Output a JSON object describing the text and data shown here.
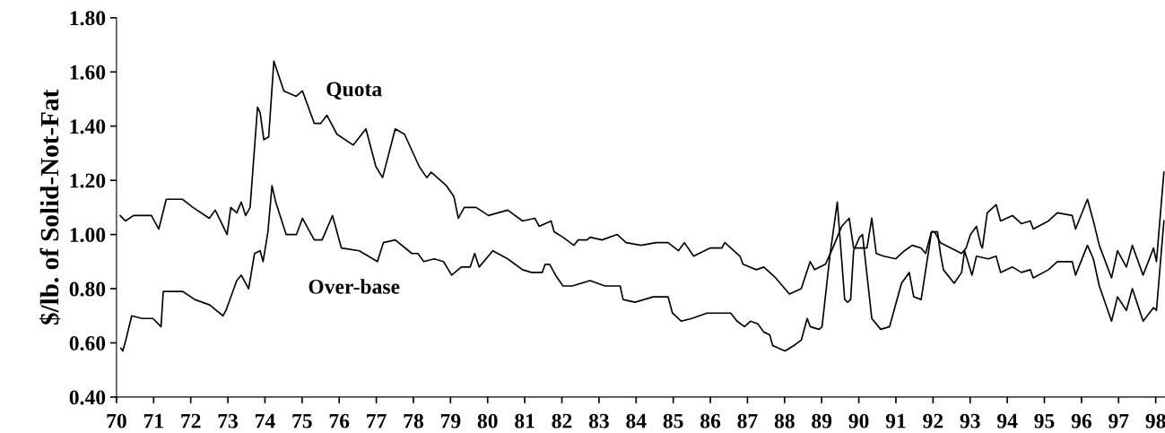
{
  "chart_data": {
    "type": "line",
    "ylabel": "$/lb. of Solid-Not-Fat",
    "xlim": [
      70,
      98.25
    ],
    "ylim": [
      0.4,
      1.8
    ],
    "xticks": [
      {
        "value": 70,
        "label": "70"
      },
      {
        "value": 71,
        "label": "71"
      },
      {
        "value": 72,
        "label": "72"
      },
      {
        "value": 73,
        "label": "73"
      },
      {
        "value": 74,
        "label": "74"
      },
      {
        "value": 75,
        "label": "75"
      },
      {
        "value": 76,
        "label": "76"
      },
      {
        "value": 77,
        "label": "77"
      },
      {
        "value": 78,
        "label": "78"
      },
      {
        "value": 79,
        "label": "79"
      },
      {
        "value": 80,
        "label": "80"
      },
      {
        "value": 81,
        "label": "81"
      },
      {
        "value": 82,
        "label": "82"
      },
      {
        "value": 83,
        "label": "83"
      },
      {
        "value": 84,
        "label": "84"
      },
      {
        "value": 85,
        "label": "85"
      },
      {
        "value": 86,
        "label": "86"
      },
      {
        "value": 87,
        "label": "87"
      },
      {
        "value": 88,
        "label": "88"
      },
      {
        "value": 89,
        "label": "89"
      },
      {
        "value": 90,
        "label": "90"
      },
      {
        "value": 91,
        "label": "91"
      },
      {
        "value": 92,
        "label": "92"
      },
      {
        "value": 93,
        "label": "93"
      },
      {
        "value": 94,
        "label": "94"
      },
      {
        "value": 95,
        "label": "95"
      },
      {
        "value": 96,
        "label": "96"
      },
      {
        "value": 97,
        "label": "97"
      },
      {
        "value": 98,
        "label": "98"
      }
    ],
    "yticks": [
      {
        "value": 0.4,
        "label": "0.40"
      },
      {
        "value": 0.6,
        "label": "0.60"
      },
      {
        "value": 0.8,
        "label": "0.80"
      },
      {
        "value": 1.0,
        "label": "1.00"
      },
      {
        "value": 1.2,
        "label": "1.20"
      },
      {
        "value": 1.4,
        "label": "1.40"
      },
      {
        "value": 1.6,
        "label": "1.60"
      },
      {
        "value": 1.8,
        "label": "1.80"
      }
    ],
    "grid": false,
    "marker": "none",
    "line_style": "solid",
    "series": [
      {
        "name": "Quota",
        "color": "#000000",
        "x": [
          70.1,
          70.24,
          70.46,
          70.94,
          71.14,
          71.34,
          71.78,
          72.06,
          72.5,
          72.66,
          72.98,
          73.08,
          73.24,
          73.36,
          73.48,
          73.6,
          73.8,
          73.87,
          73.97,
          74.1,
          74.24,
          74.51,
          74.84,
          75.01,
          75.33,
          75.5,
          75.67,
          75.94,
          76.38,
          76.72,
          76.99,
          77.17,
          77.51,
          77.76,
          78.16,
          78.36,
          78.48,
          78.89,
          79.09,
          79.21,
          79.37,
          79.69,
          80.02,
          80.54,
          80.94,
          81.27,
          81.39,
          81.71,
          81.79,
          82.03,
          82.32,
          82.44,
          82.68,
          82.76,
          83.08,
          83.49,
          83.73,
          84.13,
          84.54,
          84.86,
          85.14,
          85.3,
          85.55,
          85.99,
          86.31,
          86.39,
          86.8,
          86.88,
          87.24,
          87.44,
          87.76,
          88.13,
          88.45,
          88.69,
          88.81,
          89.1,
          89.3,
          89.54,
          89.74,
          89.86,
          90.1,
          90.22,
          90.35,
          90.47,
          90.67,
          90.99,
          91.23,
          91.44,
          91.68,
          91.8,
          91.96,
          92.04,
          92.2,
          92.77,
          92.89,
          93.01,
          93.17,
          93.29,
          93.33,
          93.46,
          93.7,
          93.82,
          94.14,
          94.38,
          94.62,
          94.7,
          95.11,
          95.35,
          95.75,
          95.84,
          96.16,
          96.32,
          96.48,
          96.81,
          96.97,
          97.21,
          97.37,
          97.66,
          97.94,
          98.02,
          98.22
        ],
        "values": [
          1.07,
          1.05,
          1.07,
          1.07,
          1.02,
          1.13,
          1.13,
          1.1,
          1.06,
          1.09,
          1.0,
          1.1,
          1.08,
          1.12,
          1.07,
          1.1,
          1.47,
          1.45,
          1.35,
          1.36,
          1.64,
          1.53,
          1.51,
          1.53,
          1.41,
          1.41,
          1.44,
          1.37,
          1.33,
          1.39,
          1.25,
          1.21,
          1.39,
          1.37,
          1.25,
          1.21,
          1.23,
          1.18,
          1.14,
          1.06,
          1.1,
          1.1,
          1.07,
          1.09,
          1.05,
          1.06,
          1.03,
          1.05,
          1.01,
          0.99,
          0.96,
          0.98,
          0.98,
          0.99,
          0.98,
          1.0,
          0.97,
          0.96,
          0.97,
          0.97,
          0.94,
          0.97,
          0.92,
          0.95,
          0.95,
          0.97,
          0.92,
          0.89,
          0.87,
          0.88,
          0.84,
          0.78,
          0.8,
          0.9,
          0.87,
          0.89,
          0.95,
          1.03,
          1.06,
          0.95,
          0.95,
          0.95,
          1.06,
          0.93,
          0.92,
          0.91,
          0.94,
          0.96,
          0.95,
          0.93,
          1.01,
          1.01,
          0.97,
          0.93,
          0.95,
          1.0,
          1.03,
          0.96,
          0.95,
          1.08,
          1.11,
          1.05,
          1.07,
          1.04,
          1.05,
          1.02,
          1.05,
          1.08,
          1.07,
          1.02,
          1.13,
          1.05,
          0.96,
          0.84,
          0.94,
          0.88,
          0.96,
          0.85,
          0.95,
          0.9,
          1.23
        ]
      },
      {
        "name": "Over-base",
        "color": "#000000",
        "x": [
          70.12,
          70.17,
          70.25,
          70.41,
          70.69,
          70.98,
          71.2,
          71.26,
          71.78,
          72.11,
          72.51,
          72.87,
          72.95,
          73.24,
          73.36,
          73.56,
          73.72,
          73.87,
          73.95,
          74.08,
          74.19,
          74.29,
          74.57,
          74.85,
          75.01,
          75.17,
          75.33,
          75.54,
          75.82,
          76.06,
          76.54,
          77.03,
          77.19,
          77.51,
          77.96,
          78.12,
          78.28,
          78.56,
          78.81,
          79.03,
          79.29,
          79.53,
          79.65,
          79.77,
          80.14,
          80.54,
          80.94,
          81.18,
          81.47,
          81.55,
          81.67,
          81.83,
          82.03,
          82.28,
          82.76,
          83.16,
          83.57,
          83.65,
          83.97,
          84.46,
          84.86,
          84.98,
          85.22,
          85.5,
          85.91,
          86.31,
          86.55,
          86.72,
          86.92,
          87.08,
          87.28,
          87.44,
          87.6,
          87.68,
          88.01,
          88.25,
          88.45,
          88.61,
          88.69,
          88.93,
          89.01,
          89.22,
          89.42,
          89.62,
          89.7,
          89.78,
          89.86,
          90.02,
          90.1,
          90.35,
          90.59,
          90.83,
          91.15,
          91.36,
          91.48,
          91.68,
          91.96,
          92.12,
          92.2,
          92.28,
          92.57,
          92.77,
          92.85,
          93.05,
          93.17,
          93.49,
          93.7,
          93.82,
          94.14,
          94.38,
          94.62,
          94.7,
          95.11,
          95.35,
          95.75,
          95.84,
          96.16,
          96.32,
          96.48,
          96.81,
          96.97,
          97.21,
          97.37,
          97.66,
          97.94,
          98.02,
          98.22
        ],
        "values": [
          0.58,
          0.57,
          0.61,
          0.7,
          0.69,
          0.69,
          0.66,
          0.79,
          0.79,
          0.76,
          0.74,
          0.7,
          0.72,
          0.83,
          0.85,
          0.8,
          0.93,
          0.94,
          0.9,
          1.01,
          1.18,
          1.12,
          1.0,
          1.0,
          1.06,
          1.02,
          0.98,
          0.98,
          1.07,
          0.95,
          0.94,
          0.9,
          0.97,
          0.98,
          0.93,
          0.93,
          0.9,
          0.91,
          0.9,
          0.85,
          0.88,
          0.88,
          0.93,
          0.88,
          0.94,
          0.91,
          0.87,
          0.86,
          0.86,
          0.89,
          0.89,
          0.85,
          0.81,
          0.81,
          0.83,
          0.81,
          0.81,
          0.76,
          0.75,
          0.77,
          0.77,
          0.71,
          0.68,
          0.69,
          0.71,
          0.71,
          0.71,
          0.68,
          0.66,
          0.68,
          0.67,
          0.64,
          0.63,
          0.59,
          0.57,
          0.59,
          0.61,
          0.69,
          0.66,
          0.65,
          0.66,
          0.92,
          1.12,
          0.76,
          0.75,
          0.76,
          0.94,
          0.99,
          1.0,
          0.69,
          0.65,
          0.66,
          0.82,
          0.86,
          0.77,
          0.76,
          1.01,
          1.01,
          0.93,
          0.87,
          0.82,
          0.86,
          0.94,
          0.85,
          0.92,
          0.91,
          0.92,
          0.86,
          0.88,
          0.86,
          0.87,
          0.84,
          0.87,
          0.9,
          0.9,
          0.85,
          0.96,
          0.91,
          0.81,
          0.68,
          0.77,
          0.72,
          0.8,
          0.68,
          0.73,
          0.72,
          1.05
        ]
      }
    ]
  }
}
